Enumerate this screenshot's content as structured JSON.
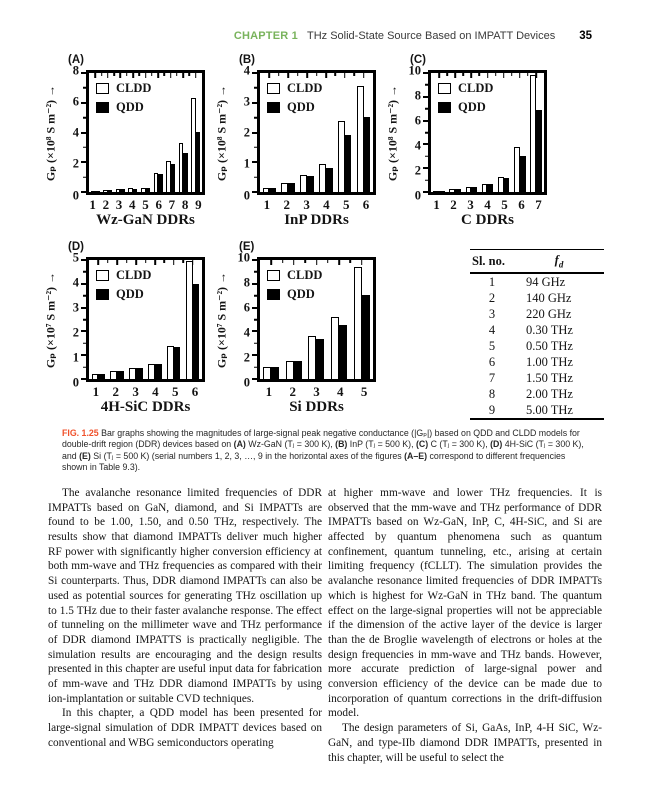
{
  "header": {
    "chapter_label": "CHAPTER 1",
    "title": "THz Solid-State Source Based on IMPATT Devices",
    "page_number": "35",
    "chapter_color": "#79b35c"
  },
  "chart_data": [
    {
      "type": "bar",
      "panel": "(A)",
      "title": "Wz-GaN DDRs",
      "ylabel": "Gₚ (×10⁸ S m⁻²) →",
      "ylim": [
        0,
        8
      ],
      "yticks": [
        0,
        2,
        4,
        6,
        8
      ],
      "categories": [
        "1",
        "2",
        "3",
        "4",
        "5",
        "6",
        "7",
        "8",
        "9"
      ],
      "legend_position": "top-left",
      "series": [
        {
          "name": "CLDD",
          "values": [
            0.07,
            0.13,
            0.2,
            0.25,
            0.3,
            1.25,
            2.1,
            3.3,
            6.3
          ]
        },
        {
          "name": "QDD",
          "values": [
            0.06,
            0.11,
            0.17,
            0.21,
            0.26,
            1.2,
            1.85,
            2.6,
            4.05
          ]
        }
      ]
    },
    {
      "type": "bar",
      "panel": "(B)",
      "title": "InP DDRs",
      "ylabel": "Gₚ (×10⁸ S m⁻²) →",
      "ylim": [
        0,
        4
      ],
      "yticks": [
        0,
        1,
        2,
        3,
        4
      ],
      "categories": [
        "1",
        "2",
        "3",
        "4",
        "5",
        "6"
      ],
      "legend_position": "top-left",
      "series": [
        {
          "name": "CLDD",
          "values": [
            0.13,
            0.3,
            0.58,
            0.93,
            2.4,
            3.55
          ]
        },
        {
          "name": "QDD",
          "values": [
            0.12,
            0.29,
            0.55,
            0.8,
            1.9,
            2.52
          ]
        }
      ]
    },
    {
      "type": "bar",
      "panel": "(C)",
      "title": "C DDRs",
      "ylabel": "Gₚ (×10⁸ S m⁻²) →",
      "ylim": [
        0,
        10
      ],
      "yticks": [
        0,
        2,
        4,
        6,
        8,
        10
      ],
      "categories": [
        "1",
        "2",
        "3",
        "4",
        "5",
        "6",
        "7"
      ],
      "legend_position": "top-left",
      "series": [
        {
          "name": "CLDD",
          "values": [
            0.12,
            0.25,
            0.45,
            0.65,
            1.3,
            3.8,
            9.8
          ]
        },
        {
          "name": "QDD",
          "values": [
            0.1,
            0.22,
            0.42,
            0.66,
            1.2,
            3.0,
            6.9
          ]
        }
      ]
    },
    {
      "type": "bar",
      "panel": "(D)",
      "title": "4H-SiC DDRs",
      "ylabel": "Gₚ (×10⁷ S m⁻²) →",
      "ylim": [
        0,
        5
      ],
      "yticks": [
        0,
        1,
        2,
        3,
        4,
        5
      ],
      "categories": [
        "1",
        "2",
        "3",
        "4",
        "5",
        "6"
      ],
      "legend_position": "top-left",
      "series": [
        {
          "name": "CLDD",
          "values": [
            0.2,
            0.33,
            0.48,
            0.65,
            1.4,
            4.95
          ]
        },
        {
          "name": "QDD",
          "values": [
            0.19,
            0.32,
            0.46,
            0.63,
            1.35,
            4.0
          ]
        }
      ]
    },
    {
      "type": "bar",
      "panel": "(E)",
      "title": "Si DDRs",
      "ylabel": "Gₚ (×10⁷ S m⁻²) →",
      "ylim": [
        0,
        10
      ],
      "yticks": [
        0,
        2,
        4,
        6,
        8,
        10
      ],
      "categories": [
        "1",
        "2",
        "3",
        "4",
        "5"
      ],
      "legend_position": "top-left",
      "series": [
        {
          "name": "CLDD",
          "values": [
            1.0,
            1.5,
            3.65,
            5.25,
            9.4
          ]
        },
        {
          "name": "QDD",
          "values": [
            1.0,
            1.5,
            3.4,
            4.5,
            7.05
          ]
        }
      ]
    }
  ],
  "freq_table": {
    "col1": "Sl. no.",
    "col2_main": "f",
    "col2_sub": "d",
    "rows": [
      [
        "1",
        "94 GHz"
      ],
      [
        "2",
        "140 GHz"
      ],
      [
        "3",
        "220 GHz"
      ],
      [
        "4",
        "0.30 THz"
      ],
      [
        "5",
        "0.50 THz"
      ],
      [
        "6",
        "1.00 THz"
      ],
      [
        "7",
        "1.50 THz"
      ],
      [
        "8",
        "2.00 THz"
      ],
      [
        "9",
        "5.00 THz"
      ]
    ]
  },
  "caption": {
    "fig_color": "#f0512b",
    "segments": [
      {
        "t": "FIG. 1.25",
        "fig": true
      },
      {
        "t": "  Bar graphs showing the magnitudes of large-signal peak negative conductance (|Gₚ|) based on QDD and CLDD models for double-drift region (DDR) devices based on "
      },
      {
        "t": "(A)",
        "b": true
      },
      {
        "t": " Wz-GaN (Tⱼ = 300 K), "
      },
      {
        "t": "(B)",
        "b": true
      },
      {
        "t": " InP (Tⱼ = 500 K), "
      },
      {
        "t": "(C)",
        "b": true
      },
      {
        "t": " C (Tⱼ = 300 K), "
      },
      {
        "t": "(D)",
        "b": true
      },
      {
        "t": " 4H-SiC (Tⱼ = 300 K), and "
      },
      {
        "t": "(E)",
        "b": true
      },
      {
        "t": " Si (Tⱼ = 500 K) (serial numbers 1, 2, 3, …, 9 in the horizontal axes of the figures "
      },
      {
        "t": "(A–E)",
        "b": true
      },
      {
        "t": " correspond to different frequencies shown in Table 9.3)."
      }
    ]
  },
  "body": {
    "left_col": [
      "The avalanche resonance limited frequencies of DDR IMPATTs based on GaN, diamond, and Si IMPATTs are found to be 1.00, 1.50, and 0.50 THz, respectively. The results show that diamond IMPATTs deliver much higher RF power with significantly higher conversion efficiency at both mm-wave and THz frequencies as compared with their Si counterparts. Thus, DDR diamond IMPATTs can also be used as potential sources for generating THz oscillation up to 1.5 THz due to their faster avalanche response. The effect of tunneling on the millimeter wave and THz performance of DDR diamond IMPATTS is practically negligible. The simulation results are encouraging and the design results presented in this chapter are useful input data for fabrication of mm-wave and THz DDR diamond IMPATTs by using ion-implantation or suitable CVD techniques.",
      "In this chapter, a QDD model has been presented for large-signal simulation of DDR IMPATT devices based on conventional and WBG semiconductors operating"
    ],
    "right_col": [
      "at higher mm-wave and lower THz frequencies. It is observed that the mm-wave and THz performance of DDR IMPATTs based on Wz-GaN, InP, C, 4H-SiC, and Si are affected by quantum phenomena such as quantum confinement, quantum tunneling, etc., arising at certain limiting frequency (fCLLT). The simulation provides the avalanche resonance limited frequencies of DDR IMPATTs which is highest for Wz-GaN in THz band. The quantum effect on the large-signal properties will not be appreciable if the dimension of the active layer of the device is larger than the de Broglie wavelength of electrons or holes at the design frequencies in mm-wave and THz bands. However, more accurate prediction of large-signal power and conversion efficiency of the device can be made due to incorporation of quantum corrections in the drift-diffusion model.",
      "The design parameters of Si, GaAs, InP, 4-H SiC, Wz-GaN, and type-IIb diamond DDR IMPATTs, presented in this chapter, will be useful to select the"
    ]
  }
}
